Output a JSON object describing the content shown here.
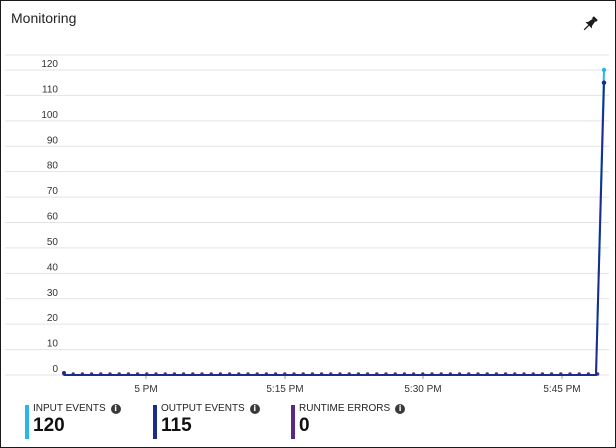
{
  "panel": {
    "title": "Monitoring",
    "pin_icon": "pin-icon"
  },
  "legend": [
    {
      "label": "INPUT EVENTS",
      "value": "120",
      "color": "#29b6e8",
      "info_icon": "info-icon"
    },
    {
      "label": "OUTPUT EVENTS",
      "value": "115",
      "color": "#1a2d8c",
      "info_icon": "info-icon"
    },
    {
      "label": "RUNTIME ERRORS",
      "value": "0",
      "color": "#5a2a82",
      "info_icon": "info-icon"
    }
  ],
  "chart_data": {
    "type": "line",
    "y_ticks": [
      "0",
      "10",
      "20",
      "30",
      "40",
      "50",
      "60",
      "70",
      "80",
      "90",
      "100",
      "110",
      "120"
    ],
    "ylim": [
      0,
      120
    ],
    "x_ticks": [
      "5 PM",
      "5:15 PM",
      "5:30 PM",
      "5:45 PM"
    ],
    "grid": true,
    "series": [
      {
        "name": "INPUT EVENTS",
        "color": "#29b6e8",
        "values_note_last": 120
      },
      {
        "name": "OUTPUT EVENTS",
        "color": "#1a2d8c",
        "values_note_last": 115
      },
      {
        "name": "RUNTIME ERRORS",
        "color": "#5a2a82",
        "values_note_last": 0
      }
    ]
  }
}
